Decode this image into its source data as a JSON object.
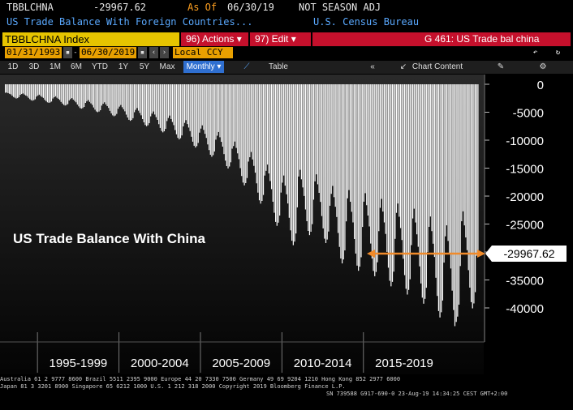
{
  "header": {
    "ticker": "TBBLCHNA",
    "last_value": "-29967.62",
    "as_of_label": "As Of",
    "as_of_date": "06/30/19",
    "season": "NOT SEASON ADJ",
    "description": "US Trade Balance With Foreign Countries...",
    "source": "U.S. Census Bureau"
  },
  "menubar": {
    "index_label": "TBBLCHNA Index",
    "actions": "96) Actions ▾",
    "edit": "97) Edit ▾",
    "chart_code": "G 461: US Trade bal china"
  },
  "datebar": {
    "start": "01/31/1993",
    "end": "06/30/2019",
    "currency": "Local CCY"
  },
  "toolbar": {
    "ranges": [
      "1D",
      "3D",
      "1M",
      "6M",
      "YTD",
      "1Y",
      "5Y",
      "Max"
    ],
    "period": "Monthly ▾",
    "table": "Table",
    "chart_content": "Chart Content",
    "collapse": "«"
  },
  "chart_data": {
    "type": "bar",
    "title": "US Trade Balance With China",
    "ylim": [
      -45000,
      0
    ],
    "yticks": [
      "0",
      "-5000",
      "-10000",
      "-15000",
      "-20000",
      "-25000",
      "-30000",
      "-35000",
      "-40000"
    ],
    "x_groups": [
      "1995-1999",
      "2000-2004",
      "2005-2009",
      "2010-2014",
      "2015-2019"
    ],
    "last_value_label": "-29967.62",
    "last_value": -29967.62,
    "series": [
      {
        "x_start": "1993-01",
        "x_end": "2019-06",
        "values": [
          -1520,
          -1480,
          -1600,
          -1700,
          -1800,
          -2050,
          -2280,
          -2400,
          -2550,
          -2480,
          -2300,
          -1900,
          -1750,
          -1640,
          -1840,
          -2000,
          -2130,
          -2420,
          -2660,
          -2840,
          -2940,
          -2830,
          -2680,
          -2200,
          -2000,
          -1860,
          -2100,
          -2280,
          -2440,
          -2780,
          -3020,
          -3230,
          -3320,
          -3250,
          -3090,
          -2550,
          -2320,
          -2150,
          -2410,
          -2600,
          -2800,
          -3160,
          -3450,
          -3690,
          -3800,
          -3710,
          -3540,
          -2900,
          -2660,
          -2470,
          -2740,
          -2990,
          -3230,
          -3620,
          -3960,
          -4250,
          -4360,
          -4260,
          -4060,
          -3330,
          -3050,
          -2820,
          -3150,
          -3420,
          -3700,
          -4150,
          -4540,
          -4860,
          -4990,
          -4880,
          -4640,
          -3820,
          -3490,
          -3230,
          -3600,
          -3910,
          -4240,
          -4760,
          -5200,
          -5560,
          -5720,
          -5590,
          -5310,
          -4380,
          -4000,
          -3710,
          -4110,
          -4470,
          -4840,
          -5430,
          -5940,
          -6360,
          -6540,
          -6390,
          -6070,
          -5000,
          -4580,
          -4250,
          -4720,
          -5130,
          -5560,
          -6230,
          -6810,
          -7290,
          -7500,
          -7330,
          -6960,
          -5740,
          -5250,
          -4870,
          -5410,
          -5880,
          -6370,
          -7140,
          -7810,
          -8360,
          -8600,
          -8410,
          -7980,
          -6580,
          -6030,
          -5600,
          -6220,
          -6750,
          -7310,
          -8190,
          -8950,
          -9590,
          -9860,
          -9640,
          -9150,
          -7540,
          -6910,
          -6420,
          -7120,
          -7740,
          -8380,
          -9390,
          -10270,
          -11000,
          -11310,
          -11060,
          -10490,
          -8650,
          -7930,
          -7350,
          -8170,
          -8870,
          -9600,
          -10760,
          -11770,
          -12610,
          -12960,
          -12670,
          -12020,
          -9910,
          -9200,
          -8540,
          -9480,
          -10300,
          -11150,
          -12490,
          -13660,
          -14640,
          -15050,
          -14710,
          -13960,
          -11520,
          -11050,
          -10250,
          -11390,
          -12360,
          -13390,
          -15000,
          -16410,
          -17580,
          -18080,
          -17680,
          -16770,
          -13830,
          -13050,
          -12110,
          -13450,
          -14600,
          -15810,
          -17720,
          -19380,
          -20760,
          -21350,
          -20870,
          -19800,
          -16330,
          -15480,
          -14360,
          -15950,
          -17310,
          -18750,
          -21010,
          -22980,
          -24620,
          -25320,
          -24750,
          -23480,
          -19370,
          -17600,
          -16320,
          -18130,
          -19680,
          -21320,
          -23880,
          -26130,
          -27990,
          -28780,
          -28140,
          -26690,
          -22020,
          -16500,
          -15300,
          -17000,
          -18450,
          -19980,
          -22390,
          -24490,
          -26230,
          -26980,
          -26380,
          -25020,
          -20640,
          -17370,
          -16110,
          -17890,
          -19420,
          -21040,
          -23570,
          -25780,
          -27620,
          -28400,
          -27770,
          -26340,
          -21730,
          -19600,
          -18180,
          -20190,
          -21910,
          -23740,
          -26600,
          -29090,
          -31160,
          -32040,
          -31330,
          -29720,
          -24520,
          -20400,
          -18920,
          -21010,
          -22810,
          -24710,
          -27680,
          -30280,
          -32440,
          -33360,
          -32620,
          -30940,
          -25520,
          -21000,
          -19480,
          -21630,
          -23480,
          -25430,
          -28490,
          -31170,
          -33390,
          -34330,
          -33570,
          -31840,
          -26270,
          -22100,
          -20500,
          -22770,
          -24710,
          -26770,
          -29990,
          -32810,
          -35150,
          -36140,
          -35340,
          -33520,
          -27650,
          -23000,
          -21330,
          -23690,
          -25720,
          -27860,
          -31210,
          -34140,
          -36580,
          -37610,
          -36780,
          -34880,
          -28770,
          -24000,
          -22260,
          -24720,
          -26840,
          -29070,
          -32570,
          -35630,
          -38170,
          -39250,
          -38380,
          -36400,
          -30020,
          -25500,
          -23650,
          -26270,
          -28520,
          -30890,
          -34610,
          -37860,
          -40560,
          -41710,
          -40780,
          -38680,
          -31900,
          -27200,
          -25230,
          -28020,
          -30420,
          -32950,
          -36910,
          -40380,
          -43260,
          -42510,
          -41560,
          -39420,
          -32510,
          -24500,
          -22730,
          -25240,
          -27400,
          -29680,
          -33250,
          -36370,
          -38970,
          -40080,
          -39200,
          -37180,
          -30670,
          -29967.62
        ]
      }
    ]
  },
  "footer": {
    "line1": "Australia 61 2 9777 8600 Brazil 5511 2395 9000 Europe 44 20 7330 7500 Germany 49 69 9204 1210 Hong Kong 852 2977 6000",
    "line2": "Japan 81 3 3201 8900          Singapore 65 6212 1000          U.S. 1 212 318 2000          Copyright 2019 Bloomberg Finance L.P.",
    "line3": "SN 739588 G917-690-0 23-Aug-19 14:34:25 CEST GMT+2:00"
  }
}
